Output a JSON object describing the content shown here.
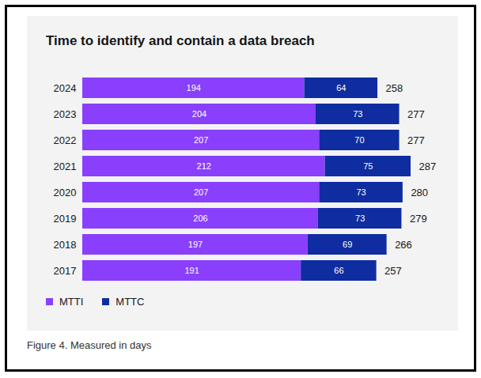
{
  "chart_data": {
    "type": "bar",
    "title": "Time to identify and contain a data breach",
    "caption": "Figure 4. Measured in days",
    "orientation": "horizontal",
    "stacked": true,
    "data_labels": true,
    "tick_labels": "y",
    "legend": "bottom-left",
    "categories": [
      "2024",
      "2023",
      "2022",
      "2021",
      "2020",
      "2019",
      "2018",
      "2017"
    ],
    "series": [
      {
        "name": "MTTI",
        "color": "#8a3ffc",
        "values": [
          194,
          204,
          207,
          212,
          207,
          206,
          197,
          191
        ]
      },
      {
        "name": "MTTC",
        "color": "#0f2da0",
        "values": [
          64,
          73,
          70,
          75,
          73,
          73,
          69,
          66
        ]
      }
    ],
    "totals": [
      258,
      277,
      277,
      287,
      280,
      279,
      266,
      257
    ],
    "xlim": [
      0,
      287
    ]
  }
}
